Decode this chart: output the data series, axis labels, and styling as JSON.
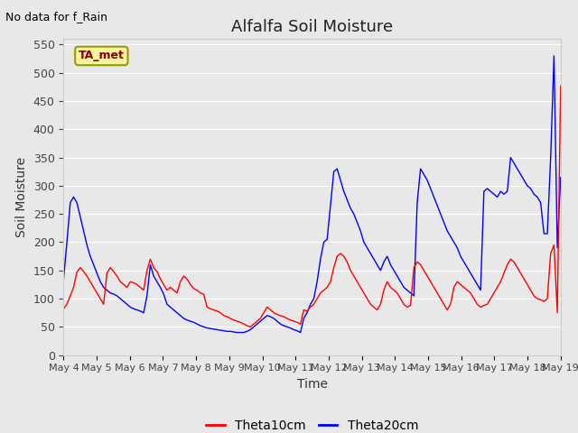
{
  "title": "Alfalfa Soil Moisture",
  "xlabel": "Time",
  "ylabel": "Soil Moisture",
  "top_left_note": "No data for f_Rain",
  "box_label": "TA_met",
  "ylim": [
    0,
    560
  ],
  "yticks": [
    0,
    50,
    100,
    150,
    200,
    250,
    300,
    350,
    400,
    450,
    500,
    550
  ],
  "background_color": "#e8e8e8",
  "plot_bg_color": "#e8e8e8",
  "grid_color": "white",
  "legend_labels": [
    "Theta10cm",
    "Theta20cm"
  ],
  "legend_colors": [
    "red",
    "blue"
  ],
  "theta10_color": "red",
  "theta20_color": "blue",
  "x_tick_labels": [
    "May 4",
    "May 5",
    "May 6",
    "May 7",
    "May 8",
    "May 9",
    "May 10",
    "May 11",
    "May 12",
    "May 13",
    "May 14",
    "May 15",
    "May 16",
    "May 17",
    "May 18",
    "May 19"
  ],
  "theta10_y": [
    82,
    90,
    105,
    120,
    147,
    155,
    148,
    140,
    130,
    120,
    110,
    100,
    90,
    145,
    155,
    148,
    140,
    130,
    125,
    120,
    130,
    128,
    125,
    120,
    115,
    150,
    170,
    155,
    148,
    135,
    125,
    115,
    120,
    115,
    110,
    130,
    140,
    135,
    125,
    118,
    115,
    110,
    108,
    85,
    82,
    80,
    78,
    75,
    70,
    68,
    65,
    62,
    60,
    58,
    55,
    52,
    50,
    55,
    60,
    65,
    75,
    85,
    80,
    75,
    72,
    70,
    68,
    65,
    62,
    60,
    58,
    55,
    80,
    78,
    85,
    90,
    100,
    110,
    115,
    120,
    130,
    155,
    175,
    180,
    175,
    165,
    150,
    140,
    130,
    120,
    110,
    100,
    90,
    85,
    80,
    90,
    115,
    130,
    120,
    115,
    110,
    100,
    90,
    85,
    88,
    155,
    165,
    160,
    150,
    140,
    130,
    120,
    110,
    100,
    90,
    80,
    90,
    120,
    130,
    125,
    120,
    115,
    110,
    100,
    90,
    85,
    88,
    90,
    100,
    110,
    120,
    130,
    145,
    160,
    170,
    165,
    155,
    145,
    135,
    125,
    115,
    105,
    100,
    98,
    95,
    100,
    180,
    195,
    75,
    477
  ],
  "theta20_y": [
    135,
    200,
    270,
    280,
    270,
    245,
    220,
    195,
    175,
    160,
    145,
    130,
    120,
    115,
    110,
    108,
    105,
    100,
    95,
    90,
    85,
    82,
    80,
    78,
    75,
    105,
    160,
    140,
    130,
    120,
    108,
    90,
    85,
    80,
    75,
    70,
    65,
    62,
    60,
    58,
    55,
    52,
    50,
    48,
    47,
    46,
    45,
    44,
    43,
    42,
    42,
    41,
    40,
    40,
    40,
    42,
    45,
    50,
    55,
    60,
    65,
    70,
    68,
    65,
    60,
    55,
    52,
    50,
    48,
    45,
    43,
    40,
    65,
    75,
    90,
    100,
    130,
    170,
    200,
    205,
    265,
    325,
    330,
    310,
    290,
    275,
    260,
    250,
    235,
    220,
    200,
    190,
    180,
    170,
    160,
    150,
    165,
    175,
    160,
    150,
    140,
    130,
    120,
    115,
    110,
    105,
    270,
    330,
    320,
    310,
    295,
    280,
    265,
    250,
    235,
    220,
    210,
    200,
    190,
    175,
    165,
    155,
    145,
    135,
    125,
    115,
    290,
    295,
    290,
    285,
    280,
    290,
    285,
    290,
    350,
    340,
    330,
    320,
    310,
    300,
    295,
    285,
    280,
    270,
    215,
    215,
    350,
    530,
    190,
    315
  ]
}
